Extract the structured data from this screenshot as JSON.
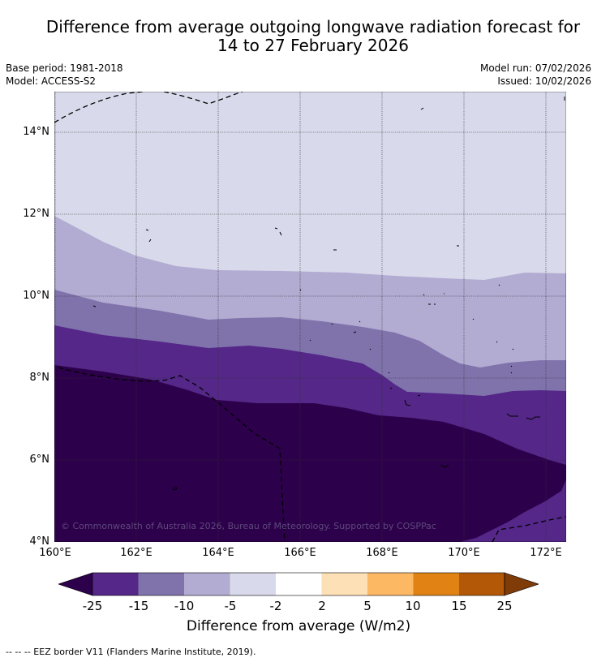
{
  "title_line1": "Difference from average outgoing longwave radiation forecast for",
  "title_line2": "14 to 27 February 2026",
  "base_period": "Base period: 1981-2018",
  "model": "Model: ACCESS-S2",
  "model_run": "Model run: 07/02/2026",
  "issued": "Issued: 10/02/2026",
  "lat_labels": [
    "14°N",
    "12°N",
    "10°N",
    "8°N",
    "6°N",
    "4°N"
  ],
  "lon_labels": [
    "160°E",
    "162°E",
    "164°E",
    "166°E",
    "168°E",
    "170°E",
    "172°E"
  ],
  "copyright": "© Commonwealth of Australia 2026, Bureau of Meteorology. Supported by COSPPac",
  "colorbar": {
    "ticks": [
      "-25",
      "-15",
      "-10",
      "-5",
      "-2",
      "2",
      "5",
      "10",
      "15",
      "25"
    ],
    "colors": [
      "#2d004b",
      "#542788",
      "#8073ac",
      "#b2abd2",
      "#d8daeb",
      "#ffffff",
      "#fee0b6",
      "#fdb863",
      "#e08214",
      "#b35806",
      "#7f3b08"
    ],
    "label": "Difference from average (W/m2)"
  },
  "legend_source": "--  --  -- EEZ border V11 (Flanders Marine Institute, 2019)."
}
